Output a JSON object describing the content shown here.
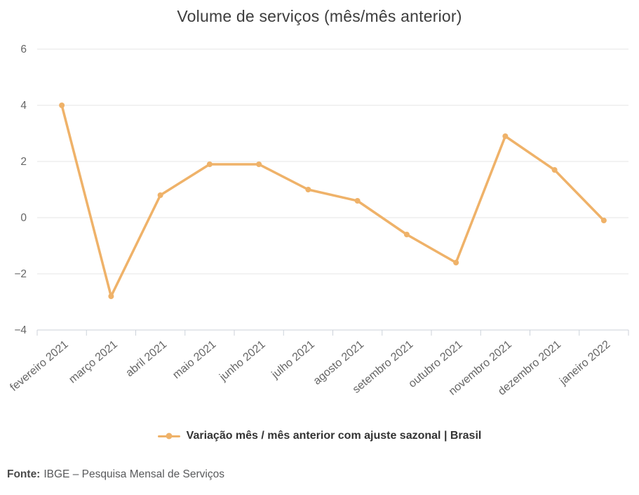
{
  "chart_data": {
    "type": "line",
    "title": "Volume de serviços (mês/mês anterior)",
    "categories": [
      "fevereiro 2021",
      "março 2021",
      "abril 2021",
      "maio 2021",
      "junho 2021",
      "julho 2021",
      "agosto 2021",
      "setembro 2021",
      "outubro 2021",
      "novembro 2021",
      "dezembro 2021",
      "janeiro 2022"
    ],
    "series": [
      {
        "name": "Variação mês / mês anterior com ajuste sazonal | Brasil",
        "values": [
          4.0,
          -2.8,
          0.8,
          1.9,
          1.9,
          1.0,
          0.6,
          -0.6,
          -1.6,
          2.9,
          1.7,
          -0.1
        ],
        "color": "#EFB269"
      }
    ],
    "xlabel": "",
    "ylabel": "",
    "ylim": [
      -4,
      6
    ],
    "yticks": [
      -4,
      -2,
      0,
      2,
      4,
      6
    ],
    "grid": true,
    "legend_position": "bottom"
  },
  "colors": {
    "series": "#EFB269",
    "gridline": "#e6e6e6",
    "axis": "#ccd2da",
    "tick_label": "#666666",
    "title": "#3d3d3d",
    "legend_text": "#333333",
    "footer_text": "#58595b"
  },
  "footer": {
    "source_label": "Fonte:",
    "source_text": "IBGE – Pesquisa Mensal de Serviços"
  }
}
